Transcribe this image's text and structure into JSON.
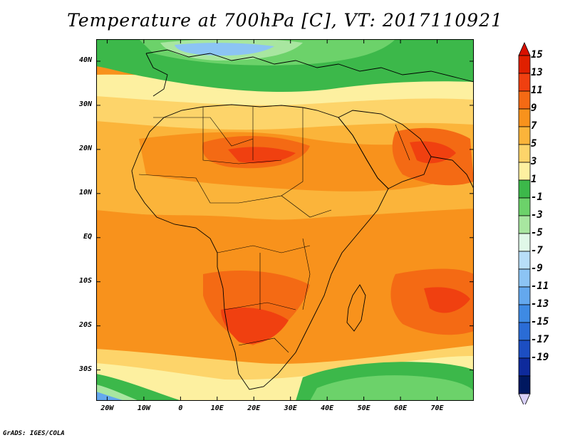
{
  "title": "Temperature at 700hPa [C], VT: 2017110921",
  "credit": "GrADS: IGES/COLA",
  "map": {
    "lon_range": [
      -23,
      80
    ],
    "lat_range": [
      -37,
      45
    ],
    "lon_ticks": [
      {
        "value": -20,
        "label": "20W"
      },
      {
        "value": -10,
        "label": "10W"
      },
      {
        "value": 0,
        "label": "0"
      },
      {
        "value": 10,
        "label": "10E"
      },
      {
        "value": 20,
        "label": "20E"
      },
      {
        "value": 30,
        "label": "30E"
      },
      {
        "value": 40,
        "label": "40E"
      },
      {
        "value": 50,
        "label": "50E"
      },
      {
        "value": 60,
        "label": "60E"
      },
      {
        "value": 70,
        "label": "70E"
      }
    ],
    "lat_ticks": [
      {
        "value": 40,
        "label": "40N"
      },
      {
        "value": 30,
        "label": "30N"
      },
      {
        "value": 20,
        "label": "20N"
      },
      {
        "value": 10,
        "label": "10N"
      },
      {
        "value": 0,
        "label": "EQ"
      },
      {
        "value": -10,
        "label": "10S"
      },
      {
        "value": -20,
        "label": "20S"
      },
      {
        "value": -30,
        "label": "30S"
      }
    ]
  },
  "colorbar": {
    "labels": [
      "15",
      "13",
      "11",
      "9",
      "7",
      "5",
      "3",
      "1",
      "-1",
      "-3",
      "-5",
      "-7",
      "-9",
      "-11",
      "-13",
      "-15",
      "-17",
      "-19"
    ],
    "colors": [
      "#e02000",
      "#f04010",
      "#f46a14",
      "#f8921c",
      "#fbb43a",
      "#fdd46a",
      "#fdf0a0",
      "#3cb84a",
      "#6cd26a",
      "#a8e6a0",
      "#e0f8e8",
      "#b8def8",
      "#8cc4f4",
      "#64a8ee",
      "#3e8ae4",
      "#2a6cd6",
      "#1c4ec2",
      "#0e2a9c",
      "#001860"
    ],
    "top_arrow_color": "#d81000",
    "bottom_arrow_color": "#d8d0f8"
  },
  "palette": {
    "land_border": "#000000",
    "ocean_warm": "#f8921c",
    "hot_core": "#f04010",
    "cool_green": "#3cb84a",
    "cold_blue": "#64a8ee"
  }
}
